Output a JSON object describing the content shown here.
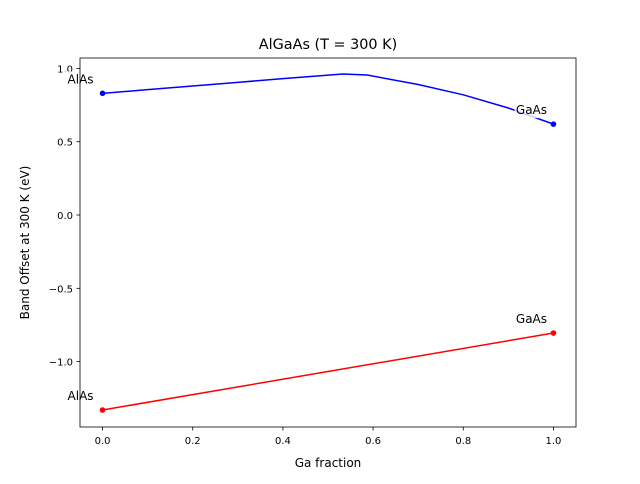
{
  "chart_data": {
    "type": "line",
    "title": "AlGaAs (T = 300 K)",
    "xlabel": "Ga fraction",
    "ylabel": "Band Offset at 300 K (eV)",
    "xlim": [
      -0.05,
      1.05
    ],
    "ylim": [
      -1.446,
      1.071
    ],
    "xticks": [
      0.0,
      0.2,
      0.4,
      0.6,
      0.8,
      1.0
    ],
    "xtick_labels": [
      "0.0",
      "0.2",
      "0.4",
      "0.6",
      "0.8",
      "1.0"
    ],
    "yticks": [
      1.0,
      0.5,
      0.0,
      -0.5,
      -1.0
    ],
    "ytick_labels": [
      "1.0",
      "0.5",
      "0.0",
      "−0.5",
      "−1.0"
    ],
    "grid": false,
    "series": [
      {
        "color": "#0000ff",
        "x": [
          0.0,
          0.1,
          0.2,
          0.3,
          0.4,
          0.533,
          0.587,
          0.7,
          0.8,
          0.9,
          1.0
        ],
        "y": [
          0.83,
          0.855,
          0.88,
          0.905,
          0.93,
          0.962,
          0.955,
          0.89,
          0.82,
          0.73,
          0.62
        ],
        "endpoints": [
          {
            "x": 0.0,
            "y": 0.83,
            "label": "AlAs"
          },
          {
            "x": 1.0,
            "y": 0.62,
            "label": "GaAs"
          }
        ]
      },
      {
        "color": "#ff0000",
        "x": [
          0.0,
          1.0
        ],
        "y": [
          -1.33,
          -0.805
        ],
        "endpoints": [
          {
            "x": 0.0,
            "y": -1.33,
            "label": "AlAs"
          },
          {
            "x": 1.0,
            "y": -0.805,
            "label": "GaAs"
          }
        ]
      }
    ]
  }
}
